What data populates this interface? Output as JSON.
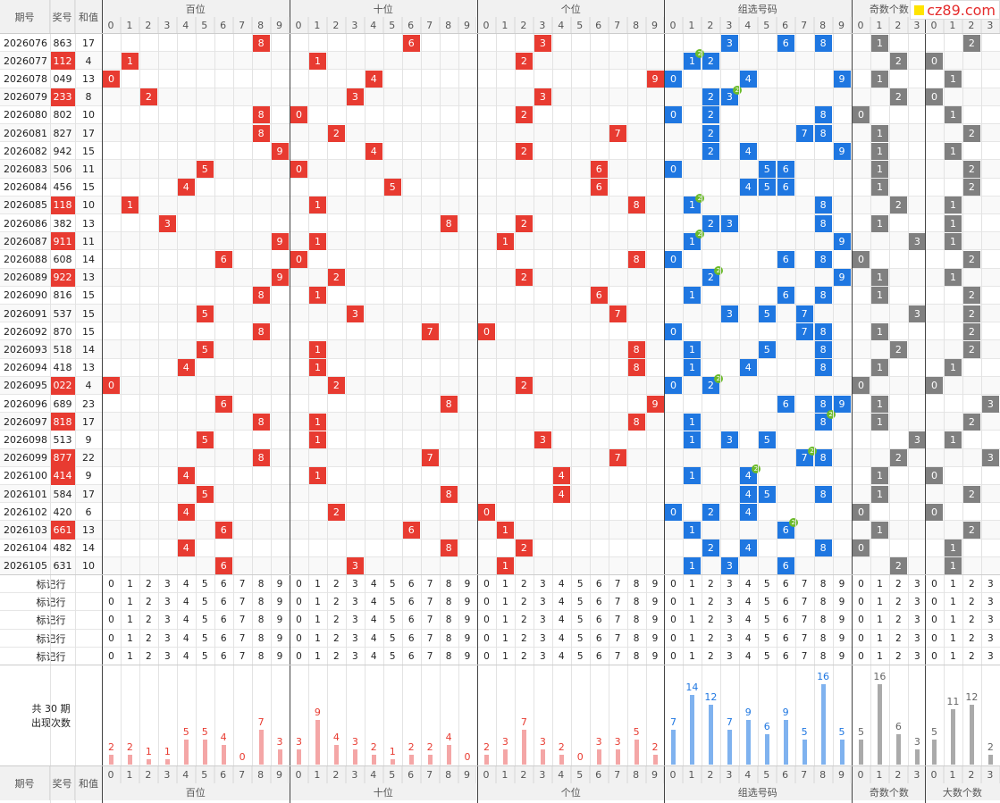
{
  "site_logo": "cz89.com",
  "header": {
    "period": "期号",
    "number": "奖号",
    "sum": "和值",
    "groups": [
      "百位",
      "十位",
      "个位",
      "组选号码",
      "奇数个数",
      "大数个数"
    ]
  },
  "digits": [
    "0",
    "1",
    "2",
    "3",
    "4",
    "5",
    "6",
    "7",
    "8",
    "9"
  ],
  "count_digits": [
    "0",
    "1",
    "2",
    "3"
  ],
  "rows": [
    {
      "period": "2026076",
      "number": "863",
      "sum": "17",
      "hundreds": 8,
      "tens": 6,
      "units": 3,
      "group": [
        3,
        6,
        8
      ],
      "odd": 1,
      "big": 2,
      "pair": false
    },
    {
      "period": "2026077",
      "number": "112",
      "sum": "4",
      "hundreds": 1,
      "tens": 1,
      "units": 2,
      "group": [
        1,
        2
      ],
      "odd": 2,
      "big": 0,
      "pair": true
    },
    {
      "period": "2026078",
      "number": "049",
      "sum": "13",
      "hundreds": 0,
      "tens": 4,
      "units": 9,
      "group": [
        0,
        4,
        9
      ],
      "odd": 1,
      "big": 1,
      "pair": false
    },
    {
      "period": "2026079",
      "number": "233",
      "sum": "8",
      "hundreds": 2,
      "tens": 3,
      "units": 3,
      "group": [
        2,
        3
      ],
      "odd": 2,
      "big": 0,
      "pair": true
    },
    {
      "period": "2026080",
      "number": "802",
      "sum": "10",
      "hundreds": 8,
      "tens": 0,
      "units": 2,
      "group": [
        0,
        2,
        8
      ],
      "odd": 0,
      "big": 1,
      "pair": false
    },
    {
      "period": "2026081",
      "number": "827",
      "sum": "17",
      "hundreds": 8,
      "tens": 2,
      "units": 7,
      "group": [
        2,
        7,
        8
      ],
      "odd": 1,
      "big": 2,
      "pair": false
    },
    {
      "period": "2026082",
      "number": "942",
      "sum": "15",
      "hundreds": 9,
      "tens": 4,
      "units": 2,
      "group": [
        2,
        4,
        9
      ],
      "odd": 1,
      "big": 1,
      "pair": false
    },
    {
      "period": "2026083",
      "number": "506",
      "sum": "11",
      "hundreds": 5,
      "tens": 0,
      "units": 6,
      "group": [
        0,
        5,
        6
      ],
      "odd": 1,
      "big": 2,
      "pair": false
    },
    {
      "period": "2026084",
      "number": "456",
      "sum": "15",
      "hundreds": 4,
      "tens": 5,
      "units": 6,
      "group": [
        4,
        5,
        6
      ],
      "odd": 1,
      "big": 2,
      "pair": false
    },
    {
      "period": "2026085",
      "number": "118",
      "sum": "10",
      "hundreds": 1,
      "tens": 1,
      "units": 8,
      "group": [
        1,
        8
      ],
      "odd": 2,
      "big": 1,
      "pair": true
    },
    {
      "period": "2026086",
      "number": "382",
      "sum": "13",
      "hundreds": 3,
      "tens": 8,
      "units": 2,
      "group": [
        2,
        3,
        8
      ],
      "odd": 1,
      "big": 1,
      "pair": false
    },
    {
      "period": "2026087",
      "number": "911",
      "sum": "11",
      "hundreds": 9,
      "tens": 1,
      "units": 1,
      "group": [
        1,
        9
      ],
      "odd": 3,
      "big": 1,
      "pair": true
    },
    {
      "period": "2026088",
      "number": "608",
      "sum": "14",
      "hundreds": 6,
      "tens": 0,
      "units": 8,
      "group": [
        0,
        6,
        8
      ],
      "odd": 0,
      "big": 2,
      "pair": false
    },
    {
      "period": "2026089",
      "number": "922",
      "sum": "13",
      "hundreds": 9,
      "tens": 2,
      "units": 2,
      "group": [
        2,
        9
      ],
      "odd": 1,
      "big": 1,
      "pair": true
    },
    {
      "period": "2026090",
      "number": "816",
      "sum": "15",
      "hundreds": 8,
      "tens": 1,
      "units": 6,
      "group": [
        1,
        6,
        8
      ],
      "odd": 1,
      "big": 2,
      "pair": false
    },
    {
      "period": "2026091",
      "number": "537",
      "sum": "15",
      "hundreds": 5,
      "tens": 3,
      "units": 7,
      "group": [
        3,
        5,
        7
      ],
      "odd": 3,
      "big": 2,
      "pair": false
    },
    {
      "period": "2026092",
      "number": "870",
      "sum": "15",
      "hundreds": 8,
      "tens": 7,
      "units": 0,
      "group": [
        0,
        7,
        8
      ],
      "odd": 1,
      "big": 2,
      "pair": false
    },
    {
      "period": "2026093",
      "number": "518",
      "sum": "14",
      "hundreds": 5,
      "tens": 1,
      "units": 8,
      "group": [
        1,
        5,
        8
      ],
      "odd": 2,
      "big": 2,
      "pair": false
    },
    {
      "period": "2026094",
      "number": "418",
      "sum": "13",
      "hundreds": 4,
      "tens": 1,
      "units": 8,
      "group": [
        1,
        4,
        8
      ],
      "odd": 1,
      "big": 1,
      "pair": false
    },
    {
      "period": "2026095",
      "number": "022",
      "sum": "4",
      "hundreds": 0,
      "tens": 2,
      "units": 2,
      "group": [
        0,
        2
      ],
      "odd": 0,
      "big": 0,
      "pair": true
    },
    {
      "period": "2026096",
      "number": "689",
      "sum": "23",
      "hundreds": 6,
      "tens": 8,
      "units": 9,
      "group": [
        6,
        8,
        9
      ],
      "odd": 1,
      "big": 3,
      "pair": false
    },
    {
      "period": "2026097",
      "number": "818",
      "sum": "17",
      "hundreds": 8,
      "tens": 1,
      "units": 8,
      "group": [
        1,
        8
      ],
      "odd": 1,
      "big": 2,
      "pair": true
    },
    {
      "period": "2026098",
      "number": "513",
      "sum": "9",
      "hundreds": 5,
      "tens": 1,
      "units": 3,
      "group": [
        1,
        3,
        5
      ],
      "odd": 3,
      "big": 1,
      "pair": false
    },
    {
      "period": "2026099",
      "number": "877",
      "sum": "22",
      "hundreds": 8,
      "tens": 7,
      "units": 7,
      "group": [
        7,
        8
      ],
      "odd": 2,
      "big": 3,
      "pair": true
    },
    {
      "period": "2026100",
      "number": "414",
      "sum": "9",
      "hundreds": 4,
      "tens": 1,
      "units": 4,
      "group": [
        1,
        4
      ],
      "odd": 1,
      "big": 0,
      "pair": true
    },
    {
      "period": "2026101",
      "number": "584",
      "sum": "17",
      "hundreds": 5,
      "tens": 8,
      "units": 4,
      "group": [
        4,
        5,
        8
      ],
      "odd": 1,
      "big": 2,
      "pair": false
    },
    {
      "period": "2026102",
      "number": "420",
      "sum": "6",
      "hundreds": 4,
      "tens": 2,
      "units": 0,
      "group": [
        0,
        2,
        4
      ],
      "odd": 0,
      "big": 0,
      "pair": false
    },
    {
      "period": "2026103",
      "number": "661",
      "sum": "13",
      "hundreds": 6,
      "tens": 6,
      "units": 1,
      "group": [
        1,
        6
      ],
      "odd": 1,
      "big": 2,
      "pair": true
    },
    {
      "period": "2026104",
      "number": "482",
      "sum": "14",
      "hundreds": 4,
      "tens": 8,
      "units": 2,
      "group": [
        2,
        4,
        8
      ],
      "odd": 0,
      "big": 1,
      "pair": false
    },
    {
      "period": "2026105",
      "number": "631",
      "sum": "10",
      "hundreds": 6,
      "tens": 3,
      "units": 1,
      "group": [
        1,
        3,
        6
      ],
      "odd": 2,
      "big": 1,
      "pair": false
    }
  ],
  "mark_rows": [
    "标记行",
    "标记行",
    "标记行",
    "标记行",
    "标记行"
  ],
  "stats": {
    "label_line1": "共 30 期",
    "label_line2": "出现次数",
    "hundreds": [
      2,
      2,
      1,
      1,
      5,
      5,
      4,
      0,
      7,
      3
    ],
    "tens": [
      3,
      9,
      4,
      3,
      2,
      1,
      2,
      2,
      4,
      0
    ],
    "units": [
      2,
      3,
      7,
      3,
      2,
      0,
      3,
      3,
      5,
      2
    ],
    "group": [
      7,
      14,
      12,
      7,
      9,
      6,
      9,
      5,
      16,
      5
    ],
    "odd": [
      5,
      16,
      6,
      3
    ],
    "big": [
      5,
      11,
      12,
      2
    ]
  },
  "colors": {
    "red": "#e83b31",
    "blue": "#1f77e1",
    "gray": "#808080",
    "pair_dot": "#6cbb2a",
    "bar_red": "#f4a6a6",
    "bar_blue": "#7fb2ef",
    "bar_gray": "#aaaaaa"
  }
}
